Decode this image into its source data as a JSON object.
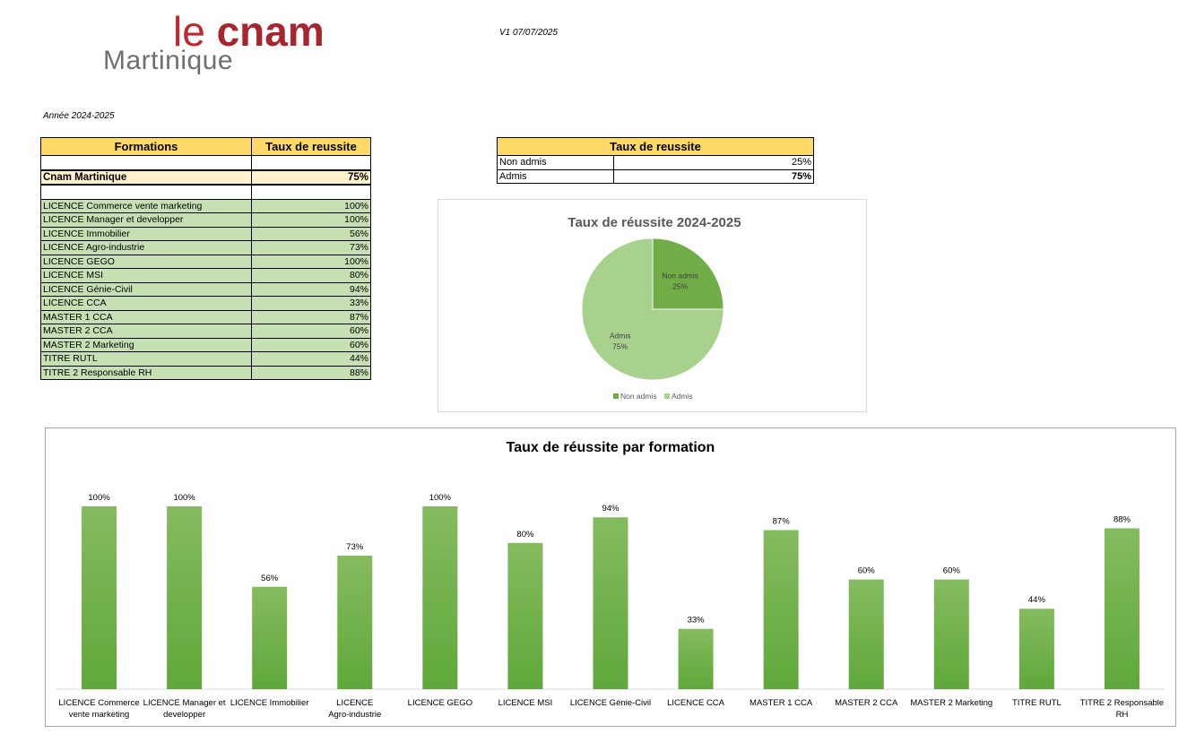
{
  "header": {
    "logo_top_thin": "le ",
    "logo_top_bold": "cnam",
    "logo_bottom": "Martinique",
    "version": "V1 07/07/2025",
    "year": "Année 2024-2025"
  },
  "formations_table": {
    "col1": "Formations",
    "col2": "Taux de reussite",
    "total_label": "Cnam Martinique",
    "total_value": "75%",
    "rows": [
      {
        "label": "LICENCE Commerce vente marketing",
        "value": "100%"
      },
      {
        "label": "LICENCE Manager et developper",
        "value": "100%"
      },
      {
        "label": "LICENCE Immobilier",
        "value": "56%"
      },
      {
        "label": "LICENCE Agro-industrie",
        "value": "73%"
      },
      {
        "label": "LICENCE GEGO",
        "value": "100%"
      },
      {
        "label": "LICENCE MSI",
        "value": "80%"
      },
      {
        "label": "LICENCE Génie-Civil",
        "value": "94%"
      },
      {
        "label": "LICENCE CCA",
        "value": "33%"
      },
      {
        "label": "MASTER 1 CCA",
        "value": "87%"
      },
      {
        "label": "MASTER 2 CCA",
        "value": "60%"
      },
      {
        "label": "MASTER 2 Marketing",
        "value": "60%"
      },
      {
        "label": "TITRE RUTL",
        "value": "44%"
      },
      {
        "label": "TITRE 2 Responsable RH",
        "value": "88%"
      }
    ]
  },
  "summary_table": {
    "header": "Taux de reussite",
    "rows": [
      {
        "label": "Non admis",
        "value": "25%"
      },
      {
        "label": "Admis",
        "value": "75%"
      }
    ]
  },
  "colors": {
    "header_yellow": "#ffd966",
    "row_green": "#c6e0b4",
    "total_cream": "#fff2cc",
    "pie_dark": "#70ad47",
    "pie_light": "#a9d18e",
    "bar_top": "#85bb5f",
    "bar_bottom": "#5fa83a"
  },
  "chart_data": [
    {
      "type": "pie",
      "title": "Taux de réussite 2024-2025",
      "categories": [
        "Non admis",
        "Admis"
      ],
      "values": [
        25,
        75
      ],
      "data_labels": [
        "25%",
        "75%"
      ],
      "colors": [
        "#70ad47",
        "#a9d18e"
      ],
      "legend": "bottom"
    },
    {
      "type": "bar",
      "title": "Taux de réussite par formation",
      "categories": [
        "LICENCE Commerce vente marketing",
        "LICENCE Manager et developper",
        "LICENCE Immobilier",
        "LICENCE Agro-industrie",
        "LICENCE GEGO",
        "LICENCE MSI",
        "LICENCE Génie-Civil",
        "LICENCE CCA",
        "MASTER 1 CCA",
        "MASTER 2 CCA",
        "MASTER 2 Marketing",
        "TITRE RUTL",
        "TITRE 2 Responsable RH"
      ],
      "values": [
        100,
        100,
        56,
        73,
        100,
        80,
        94,
        33,
        87,
        60,
        60,
        44,
        88
      ],
      "data_labels": [
        "100%",
        "100%",
        "56%",
        "73%",
        "100%",
        "80%",
        "94%",
        "33%",
        "87%",
        "60%",
        "60%",
        "44%",
        "88%"
      ],
      "ylim": [
        0,
        100
      ],
      "grid": false,
      "legend": "none"
    }
  ]
}
